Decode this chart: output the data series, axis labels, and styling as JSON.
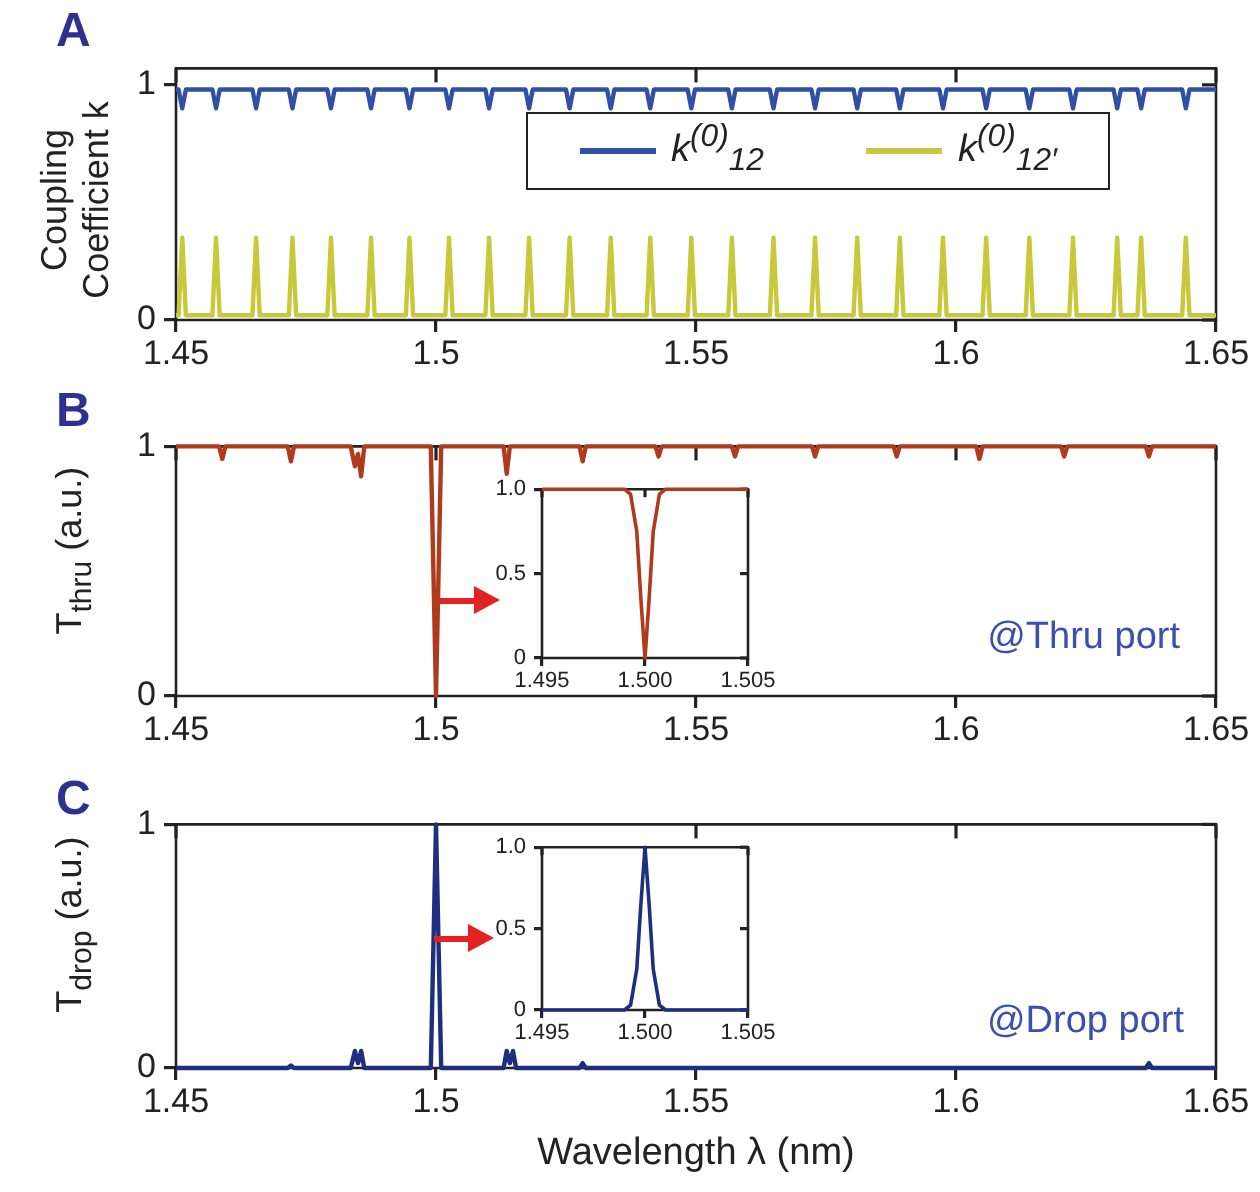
{
  "chart_data": [
    {
      "type": "line",
      "title": "A",
      "ylabel": "Coupling Coefficient k",
      "xlim": [
        1.45,
        1.65
      ],
      "xticks": [
        1.45,
        1.5,
        1.55,
        1.6,
        1.65
      ],
      "ylim": [
        0,
        1.07
      ],
      "yticks": [
        0,
        1
      ],
      "legend": "top right",
      "x": [
        1.45,
        1.4505,
        1.4512,
        1.4519,
        1.457,
        1.4577,
        1.4584,
        1.4647,
        1.4654,
        1.4661,
        1.4717,
        1.4724,
        1.4731,
        1.4791,
        1.4798,
        1.4805,
        1.4868,
        1.4875,
        1.4882,
        1.4942,
        1.4949,
        1.4956,
        1.5018,
        1.5025,
        1.5032,
        1.5095,
        1.5102,
        1.5109,
        1.5172,
        1.5179,
        1.5186,
        1.525,
        1.5257,
        1.5264,
        1.5329,
        1.5336,
        1.5343,
        1.5405,
        1.5412,
        1.5419,
        1.5484,
        1.5491,
        1.5498,
        1.5562,
        1.5569,
        1.5576,
        1.5642,
        1.5649,
        1.5656,
        1.5722,
        1.5729,
        1.5736,
        1.5803,
        1.581,
        1.5817,
        1.5885,
        1.5892,
        1.5899,
        1.5968,
        1.5975,
        1.5982,
        1.6051,
        1.6058,
        1.6065,
        1.6134,
        1.6141,
        1.6148,
        1.6218,
        1.6225,
        1.6232,
        1.6303,
        1.631,
        1.6317,
        1.6349,
        1.6356,
        1.6363,
        1.6435,
        1.6442,
        1.6449,
        1.65
      ],
      "series": [
        {
          "name": "k$^{(0)}$$_{12}$",
          "color": "#3050a8",
          "values": [
            0.98,
            0.98,
            0.9,
            0.98,
            0.98,
            0.9,
            0.98,
            0.98,
            0.9,
            0.98,
            0.98,
            0.9,
            0.98,
            0.98,
            0.9,
            0.98,
            0.98,
            0.9,
            0.98,
            0.98,
            0.9,
            0.98,
            0.98,
            0.9,
            0.98,
            0.98,
            0.9,
            0.98,
            0.98,
            0.9,
            0.98,
            0.98,
            0.9,
            0.98,
            0.98,
            0.9,
            0.98,
            0.98,
            0.9,
            0.98,
            0.98,
            0.9,
            0.98,
            0.98,
            0.9,
            0.98,
            0.98,
            0.9,
            0.98,
            0.98,
            0.9,
            0.98,
            0.98,
            0.9,
            0.98,
            0.98,
            0.9,
            0.98,
            0.98,
            0.9,
            0.98,
            0.98,
            0.9,
            0.98,
            0.98,
            0.9,
            0.98,
            0.98,
            0.9,
            0.98,
            0.98,
            0.9,
            0.98,
            0.98,
            0.9,
            0.98,
            0.98,
            0.9,
            0.98,
            0.98
          ]
        },
        {
          "name": "k$^{(0)}$$_{12′}$",
          "color": "#c8c83a",
          "values": [
            0.02,
            0.02,
            0.35,
            0.02,
            0.02,
            0.35,
            0.02,
            0.02,
            0.35,
            0.02,
            0.02,
            0.35,
            0.02,
            0.02,
            0.35,
            0.02,
            0.02,
            0.35,
            0.02,
            0.02,
            0.35,
            0.02,
            0.02,
            0.35,
            0.02,
            0.02,
            0.35,
            0.02,
            0.02,
            0.35,
            0.02,
            0.02,
            0.35,
            0.02,
            0.02,
            0.35,
            0.02,
            0.02,
            0.35,
            0.02,
            0.02,
            0.35,
            0.02,
            0.02,
            0.35,
            0.02,
            0.02,
            0.35,
            0.02,
            0.02,
            0.35,
            0.02,
            0.02,
            0.35,
            0.02,
            0.02,
            0.35,
            0.02,
            0.02,
            0.35,
            0.02,
            0.02,
            0.35,
            0.02,
            0.02,
            0.35,
            0.02,
            0.02,
            0.35,
            0.02,
            0.02,
            0.35,
            0.02,
            0.02,
            0.35,
            0.02,
            0.02,
            0.35,
            0.02,
            0.02
          ]
        }
      ]
    },
    {
      "type": "line",
      "title": "B",
      "ylabel": "T$_{thru}$ (a.u.)",
      "xlim": [
        1.45,
        1.65
      ],
      "xticks": [
        1.45,
        1.5,
        1.55,
        1.6,
        1.65
      ],
      "ylim": [
        0,
        1
      ],
      "yticks": [
        0,
        1
      ],
      "annotations": [
        "@Thru port"
      ],
      "x": [
        1.45,
        1.4583,
        1.4589,
        1.4595,
        1.4715,
        1.4721,
        1.4727,
        1.4836,
        1.4844,
        1.485,
        1.4856,
        1.4862,
        1.499,
        1.5,
        1.501,
        1.513,
        1.5136,
        1.5142,
        1.5276,
        1.5282,
        1.5288,
        1.5422,
        1.5428,
        1.5434,
        1.5569,
        1.5575,
        1.5581,
        1.5723,
        1.5729,
        1.5735,
        1.588,
        1.5886,
        1.5892,
        1.6039,
        1.6045,
        1.6051,
        1.6202,
        1.6208,
        1.6214,
        1.6365,
        1.6371,
        1.6377,
        1.65
      ],
      "series": [
        {
          "color": "#b03a1e",
          "values": [
            1,
            1,
            0.95,
            1,
            1,
            0.94,
            1,
            1,
            0.92,
            0.97,
            0.88,
            1,
            1,
            0,
            1,
            1,
            0.89,
            1,
            1,
            0.94,
            1,
            1,
            0.96,
            1,
            1,
            0.96,
            1,
            1,
            0.96,
            1,
            1,
            0.96,
            1,
            1,
            0.95,
            1,
            1,
            0.96,
            1,
            1,
            0.96,
            1,
            1
          ]
        }
      ]
    },
    {
      "type": "line",
      "xlim": [
        1.495,
        1.505
      ],
      "xticks": [
        1.495,
        {
          "value": 1.5,
          "label": "1.500"
        },
        1.505
      ],
      "ylim": [
        0,
        1
      ],
      "yticks": [
        0,
        0.5,
        {
          "value": 1,
          "label": "1.0"
        }
      ],
      "x": [
        1.495,
        1.499,
        1.4993,
        1.4996,
        1.4998,
        1.5,
        1.5002,
        1.5004,
        1.5007,
        1.501,
        1.505
      ],
      "series": [
        {
          "color": "#b03a1e",
          "values": [
            1,
            1,
            0.97,
            0.75,
            0.35,
            0,
            0.35,
            0.75,
            0.97,
            1,
            1
          ]
        }
      ]
    },
    {
      "type": "line",
      "title": "C",
      "ylabel": "T$_{drop}$ (a.u.)",
      "xlabel": "Wavelength λ (nm)",
      "xlim": [
        1.45,
        1.65
      ],
      "xticks": [
        1.45,
        1.5,
        1.55,
        1.6,
        1.65
      ],
      "ylim": [
        0,
        1
      ],
      "yticks": [
        0,
        1
      ],
      "annotations": [
        "@Drop port"
      ],
      "x": [
        1.45,
        1.4715,
        1.4721,
        1.4727,
        1.4836,
        1.4844,
        1.485,
        1.4856,
        1.4862,
        1.499,
        1.5,
        1.501,
        1.513,
        1.5136,
        1.5142,
        1.5148,
        1.5154,
        1.5276,
        1.5282,
        1.5288,
        1.6365,
        1.6371,
        1.6377,
        1.65
      ],
      "series": [
        {
          "color": "#1f2f80",
          "values": [
            0,
            0,
            0.01,
            0,
            0,
            0.07,
            0.02,
            0.07,
            0,
            0,
            1,
            0,
            0,
            0.07,
            0.02,
            0.07,
            0,
            0,
            0.02,
            0,
            0,
            0.02,
            0,
            0
          ]
        }
      ]
    },
    {
      "type": "line",
      "xlim": [
        1.495,
        1.505
      ],
      "xticks": [
        1.495,
        {
          "value": 1.5,
          "label": "1.500"
        },
        1.505
      ],
      "ylim": [
        0,
        1
      ],
      "yticks": [
        0,
        0.5,
        {
          "value": 1,
          "label": "1.0"
        }
      ],
      "x": [
        1.495,
        1.499,
        1.4993,
        1.4996,
        1.4998,
        1.5,
        1.5002,
        1.5004,
        1.5007,
        1.501,
        1.505
      ],
      "series": [
        {
          "color": "#1f2f80",
          "values": [
            0,
            0,
            0.03,
            0.25,
            0.65,
            1,
            0.65,
            0.25,
            0.03,
            0,
            0
          ]
        }
      ]
    }
  ]
}
